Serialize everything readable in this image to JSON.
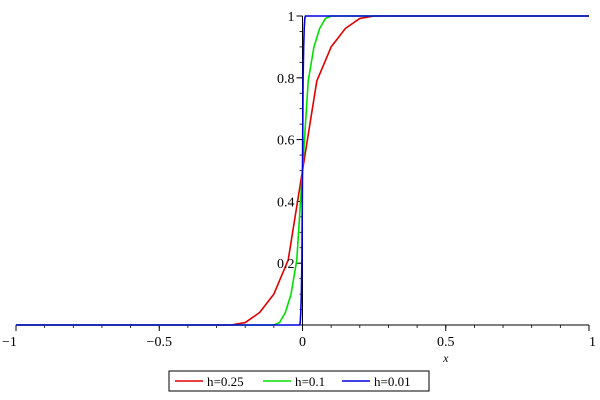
{
  "chart_data": {
    "type": "line",
    "xlabel": "x",
    "ylabel": "",
    "xlim": [
      -1,
      1
    ],
    "ylim": [
      0,
      1
    ],
    "grid": false,
    "legend_position": "bottom-center",
    "x_ticks": [
      -1,
      -0.5,
      0,
      0.5,
      1
    ],
    "x_tick_labels": [
      "−1",
      "−0.5",
      "0",
      "0.5",
      "1"
    ],
    "y_ticks": [
      0.2,
      0.4,
      0.6,
      0.8,
      1
    ],
    "y_tick_labels": [
      "0.2",
      "0.4",
      "0.6",
      "0.8",
      "1"
    ],
    "series": [
      {
        "name": "h=0.25",
        "color": "#e00000",
        "x": [
          -1,
          -0.25,
          -0.2,
          -0.15,
          -0.1,
          -0.05,
          0,
          0.05,
          0.1,
          0.15,
          0.2,
          0.25,
          1
        ],
        "y": [
          0,
          0,
          0.008,
          0.04,
          0.1,
          0.21,
          0.5,
          0.79,
          0.9,
          0.96,
          0.992,
          1,
          1
        ]
      },
      {
        "name": "h=0.1",
        "color": "#00e000",
        "x": [
          -1,
          -0.1,
          -0.08,
          -0.06,
          -0.04,
          -0.02,
          0,
          0.02,
          0.04,
          0.06,
          0.08,
          0.1,
          1
        ],
        "y": [
          0,
          0,
          0.008,
          0.04,
          0.1,
          0.21,
          0.5,
          0.79,
          0.9,
          0.96,
          0.992,
          1,
          1
        ]
      },
      {
        "name": "h=0.01",
        "color": "#0000e0",
        "x": [
          -1,
          -0.01,
          -0.008,
          -0.006,
          -0.004,
          -0.002,
          0,
          0.002,
          0.004,
          0.006,
          0.008,
          0.01,
          1
        ],
        "y": [
          0,
          0,
          0.008,
          0.04,
          0.1,
          0.21,
          0.5,
          0.79,
          0.9,
          0.96,
          0.992,
          1,
          1
        ]
      }
    ]
  }
}
